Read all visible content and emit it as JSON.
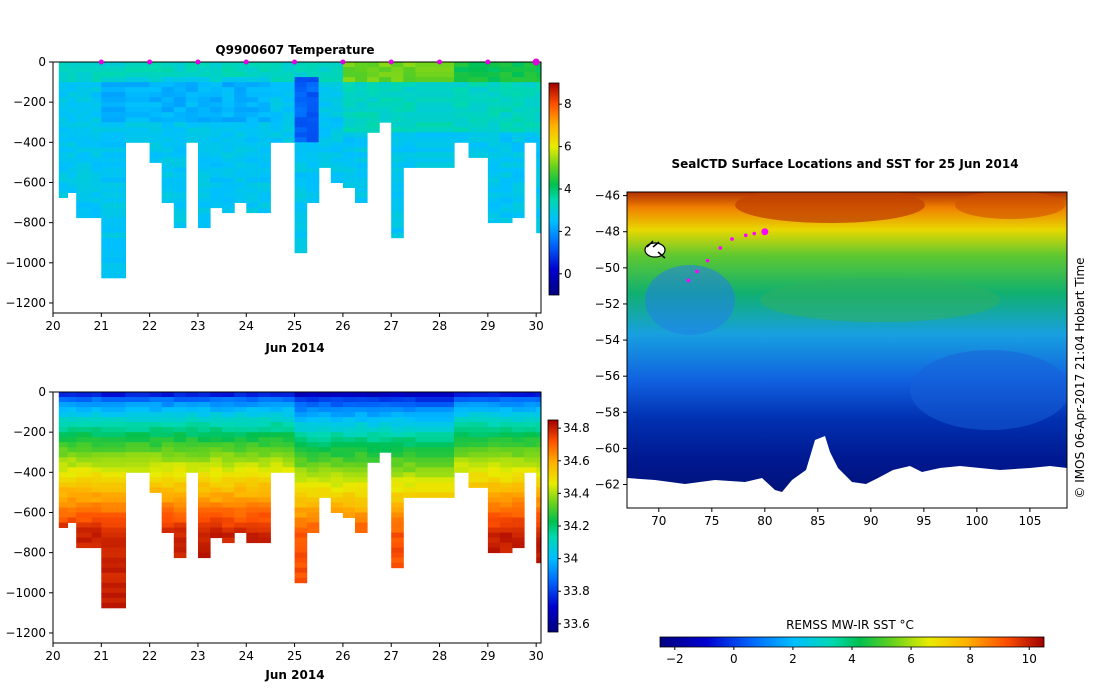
{
  "chart_data": [
    {
      "type": "heatmap",
      "title": "Q9900607  Temperature",
      "variable": "temperature",
      "xlabel": "Jun 2014",
      "xlim": [
        20,
        30.1
      ],
      "xticks": [
        "20",
        "21",
        "22",
        "23",
        "24",
        "25",
        "26",
        "27",
        "28",
        "29",
        "30"
      ],
      "ylim": [
        -1250,
        0
      ],
      "yticks": [
        "0",
        "−200",
        "−400",
        "−600",
        "−800",
        "−1000",
        "−1200"
      ],
      "colorbar": {
        "min": -1,
        "max": 9,
        "ticks": [
          "0",
          "2",
          "4",
          "6",
          "8"
        ]
      },
      "surfacing_markers": [
        21,
        22,
        23,
        24,
        25,
        26,
        27,
        28,
        29,
        30
      ]
    },
    {
      "type": "heatmap",
      "title": "",
      "variable": "salinity",
      "xlabel": "Jun 2014",
      "xlim": [
        20,
        30.1
      ],
      "xticks": [
        "20",
        "21",
        "22",
        "23",
        "24",
        "25",
        "26",
        "27",
        "28",
        "29",
        "30"
      ],
      "ylim": [
        -1250,
        0
      ],
      "yticks": [
        "0",
        "−200",
        "−400",
        "−600",
        "−800",
        "−1000",
        "−1200"
      ],
      "colorbar": {
        "min": 33.55,
        "max": 34.85,
        "ticks": [
          "33.6",
          "33.8",
          "34",
          "34.2",
          "34.4",
          "34.6",
          "34.8"
        ]
      }
    },
    {
      "type": "heatmap",
      "title": "SealCTD Surface Locations and SST for 25 Jun 2014",
      "xlabel": "",
      "xlim": [
        67,
        108.5
      ],
      "xticks": [
        "70",
        "75",
        "80",
        "85",
        "90",
        "95",
        "100",
        "105"
      ],
      "ylim": [
        -63.3,
        -45.8
      ],
      "yticks": [
        "−46",
        "−48",
        "−50",
        "−52",
        "−54",
        "−56",
        "−58",
        "−60",
        "−62"
      ],
      "colorbar": {
        "label": "REMSS MW-IR SST °C",
        "min": -2.5,
        "max": 10.5,
        "ticks": [
          "−2",
          "0",
          "2",
          "4",
          "6",
          "8",
          "10"
        ]
      },
      "locations": [
        [
          72.8,
          -50.7
        ],
        [
          73.6,
          -50.2
        ],
        [
          74.6,
          -49.6
        ],
        [
          75.8,
          -48.9
        ],
        [
          76.9,
          -48.4
        ],
        [
          78.2,
          -48.2
        ],
        [
          79.0,
          -48.1
        ],
        [
          80.0,
          -48.0
        ]
      ],
      "current_location": [
        80.0,
        -48.0
      ]
    }
  ],
  "copyright_note": "©  IMOS 06-Apr-2017 21:04 Hobart Time"
}
